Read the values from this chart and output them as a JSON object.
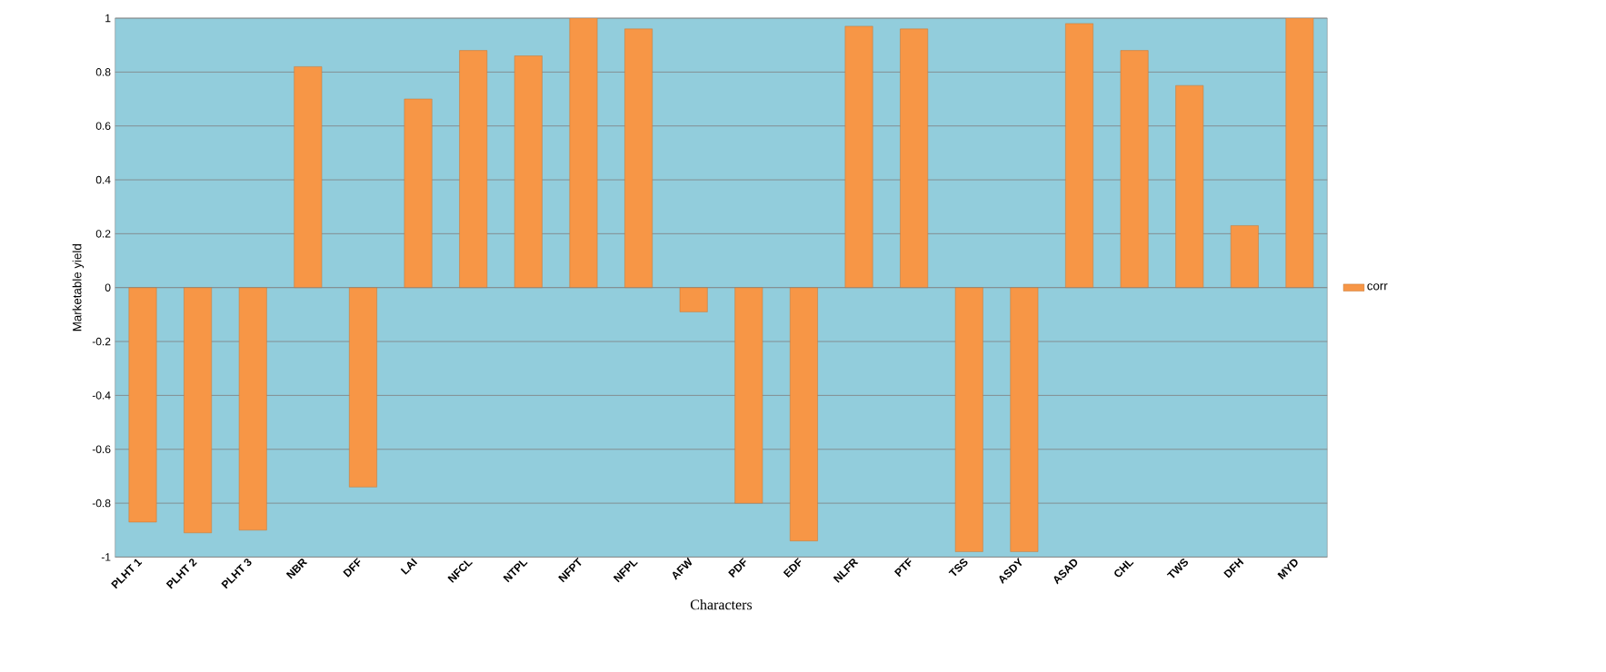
{
  "chart_data": {
    "type": "bar",
    "xlabel": "Characters",
    "ylabel": "Marketable yield",
    "categories": [
      "PLHT 1",
      "PLHT 2",
      "PLHT 3",
      "NBR",
      "DFF",
      "LAI",
      "NFCL",
      "NTPL",
      "NFPT",
      "NFPL",
      "AFW",
      "PDF",
      "EDF",
      "NLFR",
      "PTF",
      "TSS",
      "ASDY",
      "ASAD",
      "CHL",
      "TWS",
      "DFH",
      "MYD"
    ],
    "series": [
      {
        "name": "corr",
        "color": "#f79646",
        "values": [
          -0.87,
          -0.91,
          -0.9,
          0.82,
          -0.74,
          0.7,
          0.88,
          0.86,
          1.0,
          0.96,
          -0.09,
          -0.8,
          -0.94,
          0.97,
          0.96,
          -0.98,
          -0.98,
          0.98,
          0.88,
          0.75,
          0.23,
          1.0
        ]
      }
    ],
    "ylim": [
      -1,
      1
    ],
    "yticks": [
      -1,
      -0.8,
      -0.6,
      -0.4,
      -0.2,
      0,
      0.2,
      0.4,
      0.6,
      0.8,
      1
    ],
    "grid": "y",
    "legend": "right"
  }
}
